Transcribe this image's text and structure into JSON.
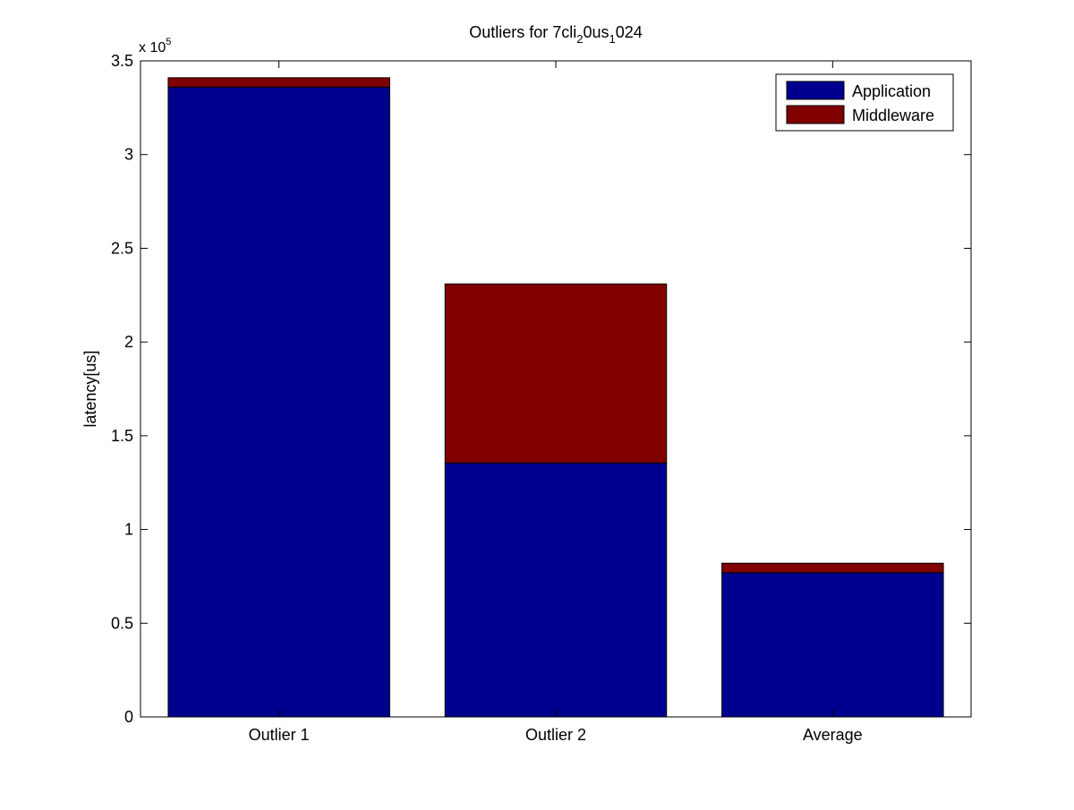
{
  "chart_data": {
    "type": "bar",
    "stacked": true,
    "title": {
      "parts": [
        {
          "text": "Outliers for 7cli",
          "sub": false
        },
        {
          "text": "2",
          "sub": true
        },
        {
          "text": "0us",
          "sub": false
        },
        {
          "text": "1",
          "sub": true
        },
        {
          "text": "024",
          "sub": false
        }
      ]
    },
    "xlabel": "",
    "ylabel": "latency[us]",
    "y_exponent": {
      "base": "x 10",
      "power": "5"
    },
    "categories": [
      "Outlier 1",
      "Outlier 2",
      "Average"
    ],
    "series": [
      {
        "name": "Application",
        "color": "#00008f",
        "values": [
          336000,
          135500,
          77000
        ]
      },
      {
        "name": "Middleware",
        "color": "#800000",
        "values": [
          5000,
          95500,
          5000
        ]
      }
    ],
    "ylim": [
      0,
      350000
    ],
    "yticks": [
      0,
      50000,
      100000,
      150000,
      200000,
      250000,
      300000,
      350000
    ],
    "ytick_labels": [
      "0",
      "0.5",
      "1",
      "1.5",
      "2",
      "2.5",
      "3",
      "3.5"
    ],
    "legend_position": "top-right",
    "grid": false
  }
}
